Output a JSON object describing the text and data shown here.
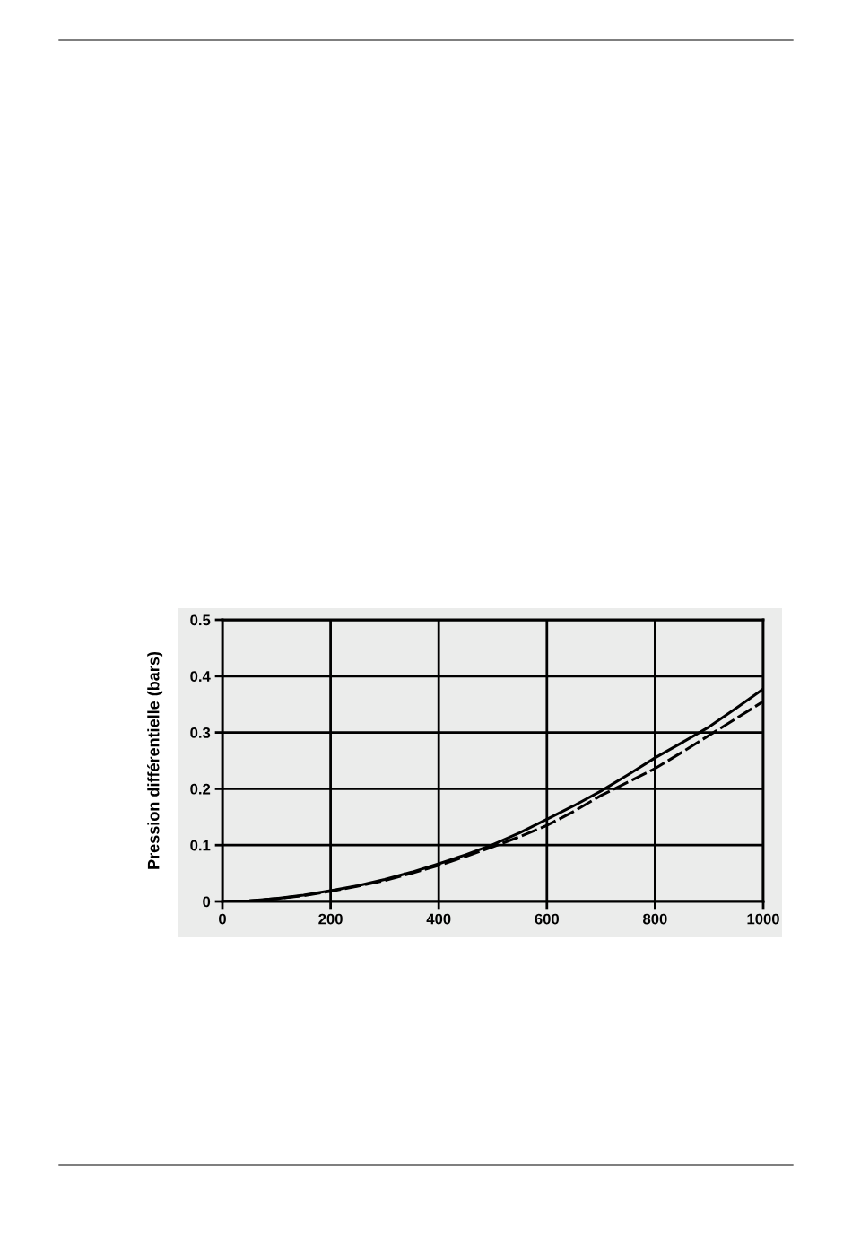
{
  "chart_data": {
    "type": "line",
    "ylabel": "Pression différentielle (bars)",
    "x": [
      0,
      50,
      100,
      150,
      200,
      250,
      300,
      350,
      400,
      450,
      500,
      550,
      600,
      650,
      700,
      750,
      800,
      850,
      900,
      950,
      1000
    ],
    "series": [
      {
        "color": "#000000",
        "line_style": "solid",
        "values": [
          0,
          0.001,
          0.005,
          0.011,
          0.019,
          0.028,
          0.039,
          0.052,
          0.067,
          0.083,
          0.101,
          0.122,
          0.146,
          0.17,
          0.196,
          0.225,
          0.255,
          0.282,
          0.31,
          0.343,
          0.377
        ]
      },
      {
        "color": "#000000",
        "line_style": "dashed",
        "values": [
          0,
          0.001,
          0.005,
          0.01,
          0.018,
          0.027,
          0.037,
          0.05,
          0.064,
          0.08,
          0.097,
          0.115,
          0.135,
          0.16,
          0.188,
          0.212,
          0.236,
          0.265,
          0.295,
          0.325,
          0.355
        ]
      }
    ],
    "xlim": [
      0,
      1000
    ],
    "xticks": [
      0,
      200,
      400,
      600,
      800,
      1000
    ],
    "ylim": [
      0,
      0.5
    ],
    "yticks": [
      0,
      0.1,
      0.2,
      0.3,
      0.4,
      0.5
    ],
    "grid": true,
    "marker": "none"
  }
}
